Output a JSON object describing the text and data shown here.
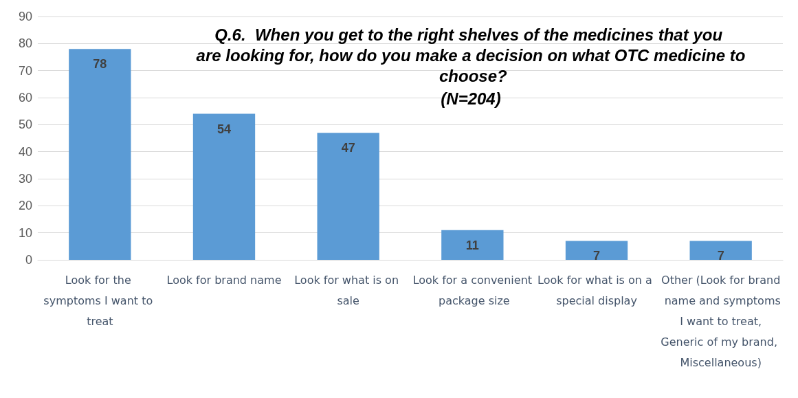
{
  "chart_data": {
    "type": "bar",
    "title": "Q.6.  When you get to the right shelves of the medicines that you are looking for, how do you make a decision on what OTC medicine to choose?",
    "subtitle": "(N=204)",
    "categories": [
      "Look for the symptoms I want to treat",
      "Look for brand name",
      "Look for what is on sale",
      "Look for a convenient package size",
      "Look for what is on a special display",
      "Other (Look for brand name and symptoms I want to treat, Generic of my brand, Miscellaneous)"
    ],
    "values": [
      78,
      54,
      47,
      11,
      7,
      7
    ],
    "color": "#5b9bd5",
    "ylim": [
      0,
      90
    ],
    "yticks": [
      0,
      10,
      20,
      30,
      40,
      50,
      60,
      70,
      80,
      90
    ],
    "grid": true,
    "data_labels": true
  }
}
